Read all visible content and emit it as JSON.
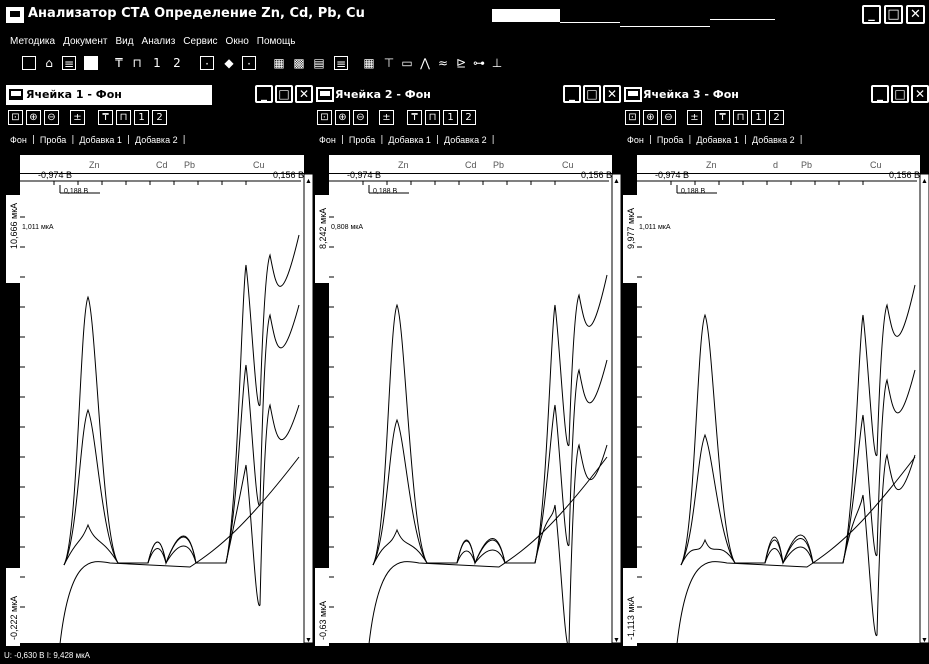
{
  "app": {
    "title": "Анализатор СТА Определение Zn, Cd, Pb, Cu",
    "min": "_",
    "max": "□",
    "close": "✕"
  },
  "menu": [
    "Методика",
    "Документ",
    "Вид",
    "Анализ",
    "Сервис",
    "Окно",
    "Помощь"
  ],
  "toolbar": {
    "icons": [
      "new-doc-icon",
      "open-folder-icon",
      "table-icon",
      "save-icon",
      "electrode-icon",
      "cell-icon",
      "one-icon",
      "two-icon",
      "calc-icon",
      "drop-icon",
      "report-icon",
      "chart-icon",
      "chart2-icon",
      "print-icon",
      "export-icon",
      "grid-icon",
      "window-icon",
      "monitor-icon",
      "peaks-icon",
      "curves-icon",
      "edit-chart-icon",
      "settings-icon",
      "baseline-icon"
    ],
    "labels": {
      "one": "1",
      "two": "2"
    }
  },
  "cells": [
    {
      "title": "Ячейка 1 - Фон",
      "active": true,
      "tabs": [
        "Фон",
        "Проба",
        "Добавка 1",
        "Добавка 2"
      ],
      "elements": [
        "Zn",
        "Cd",
        "Pb",
        "Cu"
      ],
      "x_left": "-0,974 В",
      "x_right": "0,156 В",
      "x_sub": "0,188 В",
      "y_top": "10,666 мкА",
      "y_scale": "1,011 мкА",
      "y_bottom": "-0,222 мкА"
    },
    {
      "title": "Ячейка 2 - Фон",
      "active": false,
      "tabs": [
        "Фон",
        "Проба",
        "Добавка 1",
        "Добавка 2"
      ],
      "elements": [
        "Zn",
        "Cd",
        "Pb",
        "Cu"
      ],
      "x_left": "-0,974 В",
      "x_right": "0,156 В",
      "x_sub": "0,188 В",
      "y_top": "8,242 мкА",
      "y_scale": "0,808 мкА",
      "y_bottom": "-0,63 мкА"
    },
    {
      "title": "Ячейка 3 - Фон",
      "active": false,
      "tabs": [
        "Фон",
        "Проба",
        "Добавка 1",
        "Добавка 2"
      ],
      "elements": [
        "Zn",
        "d",
        "Pb",
        "Cu"
      ],
      "x_left": "-0,974 В",
      "x_right": "0,156 В",
      "x_sub": "0,188 В",
      "y_top": "9,977 мкА",
      "y_scale": "1,011 мкА",
      "y_bottom": "-1,113 мкА"
    }
  ],
  "status": "U: -0,630 В   I: 9,428 мкА",
  "colors": {
    "background": "#000000",
    "foreground": "#ffffff"
  }
}
